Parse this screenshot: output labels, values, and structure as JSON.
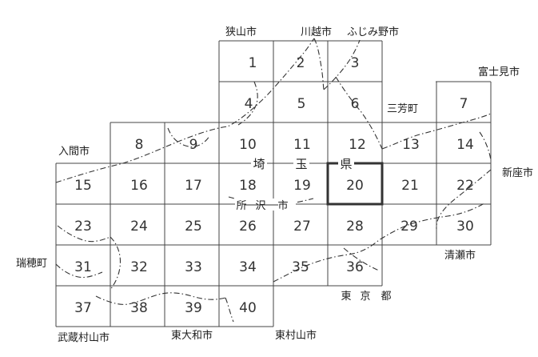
{
  "map": {
    "places": {
      "sayama": "狭山市",
      "kawagoe": "川越市",
      "fujimino": "ふじみ野市",
      "fujimi": "富士見市",
      "miyoshi": "三芳町",
      "iruma": "入間市",
      "niiza": "新座市",
      "mizuho": "瑞穂町",
      "kiyose": "清瀬市",
      "musashimurayama": "武蔵村山市",
      "higashiyamato": "東大和市",
      "higashimurayama": "東村山市"
    },
    "prefectures": {
      "saitama": [
        "埼",
        "玉",
        "県"
      ],
      "tokyo": [
        "東",
        "京",
        "都"
      ]
    },
    "tokorozawa": [
      "所",
      "沢",
      "市"
    ],
    "sheets": [
      "1",
      "2",
      "3",
      "4",
      "5",
      "6",
      "7",
      "8",
      "9",
      "10",
      "11",
      "12",
      "13",
      "14",
      "15",
      "16",
      "17",
      "18",
      "19",
      "20",
      "21",
      "22",
      "23",
      "24",
      "25",
      "26",
      "27",
      "28",
      "29",
      "30",
      "31",
      "32",
      "33",
      "34",
      "35",
      "36",
      "37",
      "38",
      "39",
      "40"
    ],
    "selected_sheet": "20",
    "colors": {
      "grid": "#444444",
      "border": "#333333",
      "selected": "#333333",
      "text": "#333333"
    }
  }
}
